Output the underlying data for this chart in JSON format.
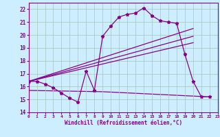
{
  "background_color": "#cceeff",
  "grid_color": "#aaccbb",
  "line_color": "#880088",
  "xlim": [
    0,
    23
  ],
  "ylim": [
    14,
    22.5
  ],
  "yticks": [
    14,
    15,
    16,
    17,
    18,
    19,
    20,
    21,
    22
  ],
  "xticks": [
    0,
    1,
    2,
    3,
    4,
    5,
    6,
    7,
    8,
    9,
    10,
    11,
    12,
    13,
    14,
    15,
    16,
    17,
    18,
    19,
    20,
    21,
    22,
    23
  ],
  "xlabel": "Windchill (Refroidissement éolien,°C)",
  "series1_x": [
    0,
    1,
    2,
    3,
    4,
    5,
    6,
    7,
    8,
    9,
    10,
    11,
    12,
    13,
    14,
    15,
    16,
    17,
    18,
    19,
    20,
    21,
    22
  ],
  "series1_y": [
    16.4,
    16.4,
    16.2,
    15.9,
    15.5,
    15.1,
    14.8,
    17.2,
    15.7,
    19.9,
    20.7,
    21.4,
    21.6,
    21.7,
    22.1,
    21.5,
    21.1,
    21.0,
    20.9,
    18.5,
    16.4,
    15.2,
    15.2
  ],
  "series2_x": [
    0,
    20
  ],
  "series2_y": [
    16.4,
    20.5
  ],
  "series3_x": [
    0,
    20
  ],
  "series3_y": [
    16.4,
    19.9
  ],
  "series4_x": [
    0,
    20
  ],
  "series4_y": [
    16.4,
    19.4
  ],
  "series5_x": [
    0,
    9,
    22
  ],
  "series5_y": [
    15.7,
    15.6,
    15.2
  ]
}
